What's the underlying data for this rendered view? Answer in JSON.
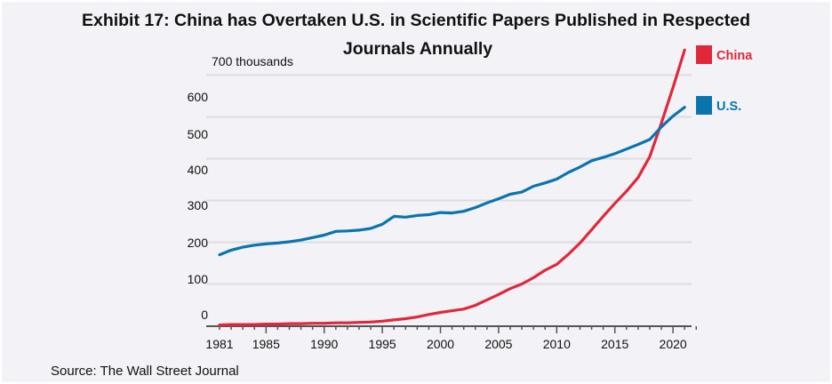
{
  "chart_data": {
    "type": "line",
    "title": "Exhibit 17: China has Overtaken U.S. in Scientific Papers Published in Respected Journals Annually",
    "title_lines": [
      "Exhibit 17: China has Overtaken U.S. in Scientific Papers Published in Respected",
      "Journals Annually"
    ],
    "xlabel": "",
    "ylabel": "thousands",
    "ylim": [
      0,
      700
    ],
    "xlim": [
      1981,
      2021
    ],
    "grid": true,
    "legend_position": "right",
    "y_ticks": [
      {
        "value": 700,
        "label": "700 thousands"
      },
      {
        "value": 600,
        "label": "600"
      },
      {
        "value": 500,
        "label": "500"
      },
      {
        "value": 400,
        "label": "400"
      },
      {
        "value": 300,
        "label": "300"
      },
      {
        "value": 200,
        "label": "200"
      },
      {
        "value": 100,
        "label": "100"
      },
      {
        "value": 0,
        "label": "0"
      }
    ],
    "x_ticks": [
      {
        "value": 1981,
        "label": "1981"
      },
      {
        "value": 1985,
        "label": "1985"
      },
      {
        "value": 1990,
        "label": "1990"
      },
      {
        "value": 1995,
        "label": "1995"
      },
      {
        "value": 2000,
        "label": "2000"
      },
      {
        "value": 2005,
        "label": "2005"
      },
      {
        "value": 2010,
        "label": "2010"
      },
      {
        "value": 2015,
        "label": "2015"
      },
      {
        "value": 2020,
        "label": "2020"
      }
    ],
    "x": [
      1981,
      1982,
      1983,
      1984,
      1985,
      1986,
      1987,
      1988,
      1989,
      1990,
      1991,
      1992,
      1993,
      1994,
      1995,
      1996,
      1997,
      1998,
      1999,
      2000,
      2001,
      2002,
      2003,
      2004,
      2005,
      2006,
      2007,
      2008,
      2009,
      2010,
      2011,
      2012,
      2013,
      2014,
      2015,
      2016,
      2017,
      2018,
      2019,
      2020,
      2021
    ],
    "series": [
      {
        "name": "China",
        "color": "#e0283a",
        "values": [
          2,
          3,
          3,
          3,
          4,
          4,
          5,
          5,
          6,
          6,
          7,
          7,
          8,
          9,
          11,
          14,
          17,
          21,
          27,
          32,
          36,
          40,
          49,
          62,
          75,
          89,
          100,
          115,
          133,
          147,
          171,
          198,
          230,
          262,
          293,
          322,
          355,
          405,
          485,
          570,
          660
        ]
      },
      {
        "name": "U.S.",
        "color": "#0a74ad",
        "values": [
          170,
          181,
          188,
          193,
          196,
          198,
          201,
          205,
          211,
          217,
          226,
          227,
          229,
          233,
          243,
          262,
          260,
          264,
          266,
          271,
          270,
          274,
          283,
          294,
          304,
          315,
          320,
          334,
          342,
          351,
          367,
          380,
          395,
          403,
          412,
          423,
          434,
          446,
          476,
          502,
          523
        ]
      }
    ],
    "source": "Source: The Wall Street Journal"
  }
}
